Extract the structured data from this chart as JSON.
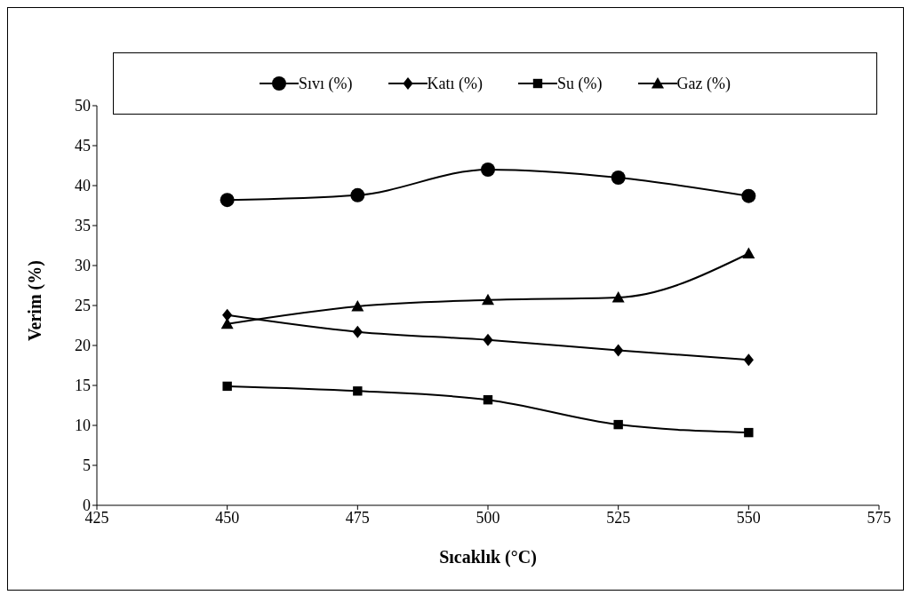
{
  "chart_data": {
    "type": "line",
    "xlabel": "Sıcaklık (°C)",
    "ylabel": "Verim (%)",
    "x": [
      450,
      475,
      500,
      525,
      550
    ],
    "xlim": [
      425,
      575
    ],
    "xticks": [
      425,
      450,
      475,
      500,
      525,
      550,
      575
    ],
    "ylim": [
      0,
      50
    ],
    "yticks": [
      0,
      5,
      10,
      15,
      20,
      25,
      30,
      35,
      40,
      45,
      50
    ],
    "grid": false,
    "legend": "top",
    "series": [
      {
        "name": "Sıvı (%)",
        "color": "#000000",
        "marker": "circle",
        "values": [
          38.2,
          38.8,
          42.0,
          41.0,
          38.7
        ]
      },
      {
        "name": "Katı (%)",
        "color": "#000000",
        "marker": "diamond",
        "values": [
          23.8,
          21.7,
          20.7,
          19.4,
          18.2
        ]
      },
      {
        "name": "Su (%)",
        "color": "#000000",
        "marker": "square",
        "values": [
          14.9,
          14.3,
          13.2,
          10.1,
          9.1
        ]
      },
      {
        "name": "Gaz (%)",
        "color": "#000000",
        "marker": "triangle",
        "values": [
          22.7,
          24.9,
          25.7,
          26.0,
          31.5
        ]
      }
    ]
  }
}
